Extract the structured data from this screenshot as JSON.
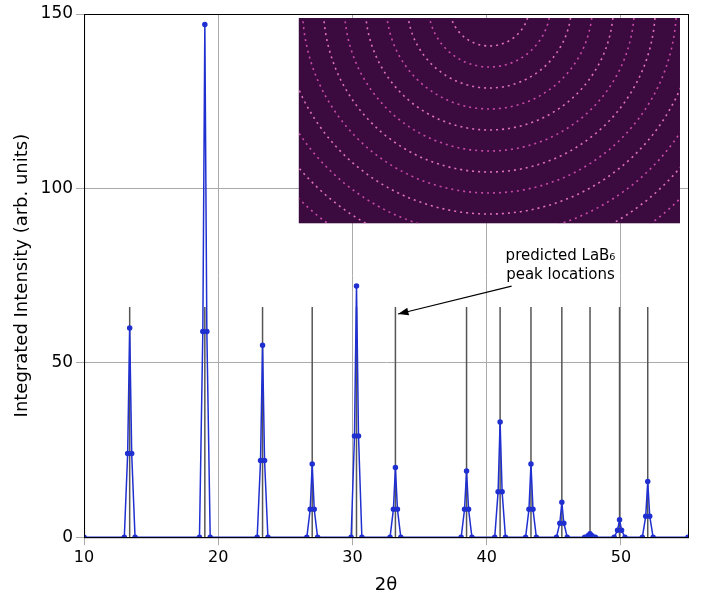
{
  "chart_data": {
    "type": "line",
    "x_label": "2θ",
    "y_label": "Integrated Intensity (arb. units)",
    "xlim": [
      10,
      55
    ],
    "ylim": [
      0,
      150
    ],
    "xticks": [
      10,
      20,
      30,
      40,
      50
    ],
    "yticks": [
      0,
      50,
      100,
      150
    ],
    "grid": true,
    "series": [
      {
        "type": "line",
        "color": "#1f2fd0",
        "marker": "circle",
        "line_style": "solid",
        "x": [
          10,
          13.0,
          13.25,
          13.4,
          13.55,
          13.8,
          18.6,
          18.85,
          19.0,
          19.15,
          19.4,
          22.9,
          23.15,
          23.3,
          23.45,
          23.7,
          26.6,
          26.85,
          27.0,
          27.15,
          27.4,
          29.9,
          30.15,
          30.3,
          30.45,
          30.7,
          32.8,
          33.05,
          33.2,
          33.35,
          33.6,
          38.1,
          38.35,
          38.5,
          38.65,
          38.9,
          40.6,
          40.85,
          41.0,
          41.15,
          41.4,
          42.9,
          43.15,
          43.3,
          43.45,
          43.7,
          45.2,
          45.45,
          45.6,
          45.75,
          46.0,
          47.3,
          47.55,
          47.7,
          47.85,
          48.1,
          49.5,
          49.75,
          49.9,
          50.05,
          50.3,
          51.6,
          51.85,
          52.0,
          52.15,
          52.4,
          55
        ],
        "values": [
          0,
          0,
          24,
          60,
          24,
          0,
          0,
          59,
          147,
          59,
          0,
          0,
          22,
          55,
          22,
          0,
          0,
          8,
          21,
          8,
          0,
          0,
          29,
          72,
          29,
          0,
          0,
          8,
          20,
          8,
          0,
          0,
          8,
          19,
          8,
          0,
          0,
          13,
          33,
          13,
          0,
          0,
          8,
          21,
          8,
          0,
          0,
          4,
          10,
          4,
          0,
          0,
          0.4,
          1,
          0.4,
          0,
          0,
          2,
          5,
          2,
          0,
          0,
          6,
          16,
          6,
          0,
          0
        ]
      },
      {
        "type": "stem",
        "color": "#555555",
        "line_style": "solid",
        "x": [
          13.4,
          19.0,
          23.3,
          27.0,
          30.3,
          33.2,
          38.5,
          41.0,
          43.3,
          45.6,
          47.7,
          49.9,
          52.0
        ],
        "values": [
          66,
          66,
          66,
          66,
          66,
          66,
          66,
          66,
          66,
          66,
          66,
          66,
          66
        ]
      }
    ],
    "annotation": {
      "text": [
        "predicted LaB₆",
        "peak locations"
      ],
      "x": 45.5,
      "y": 78,
      "arrow_to": [
        33.4,
        64
      ]
    }
  }
}
